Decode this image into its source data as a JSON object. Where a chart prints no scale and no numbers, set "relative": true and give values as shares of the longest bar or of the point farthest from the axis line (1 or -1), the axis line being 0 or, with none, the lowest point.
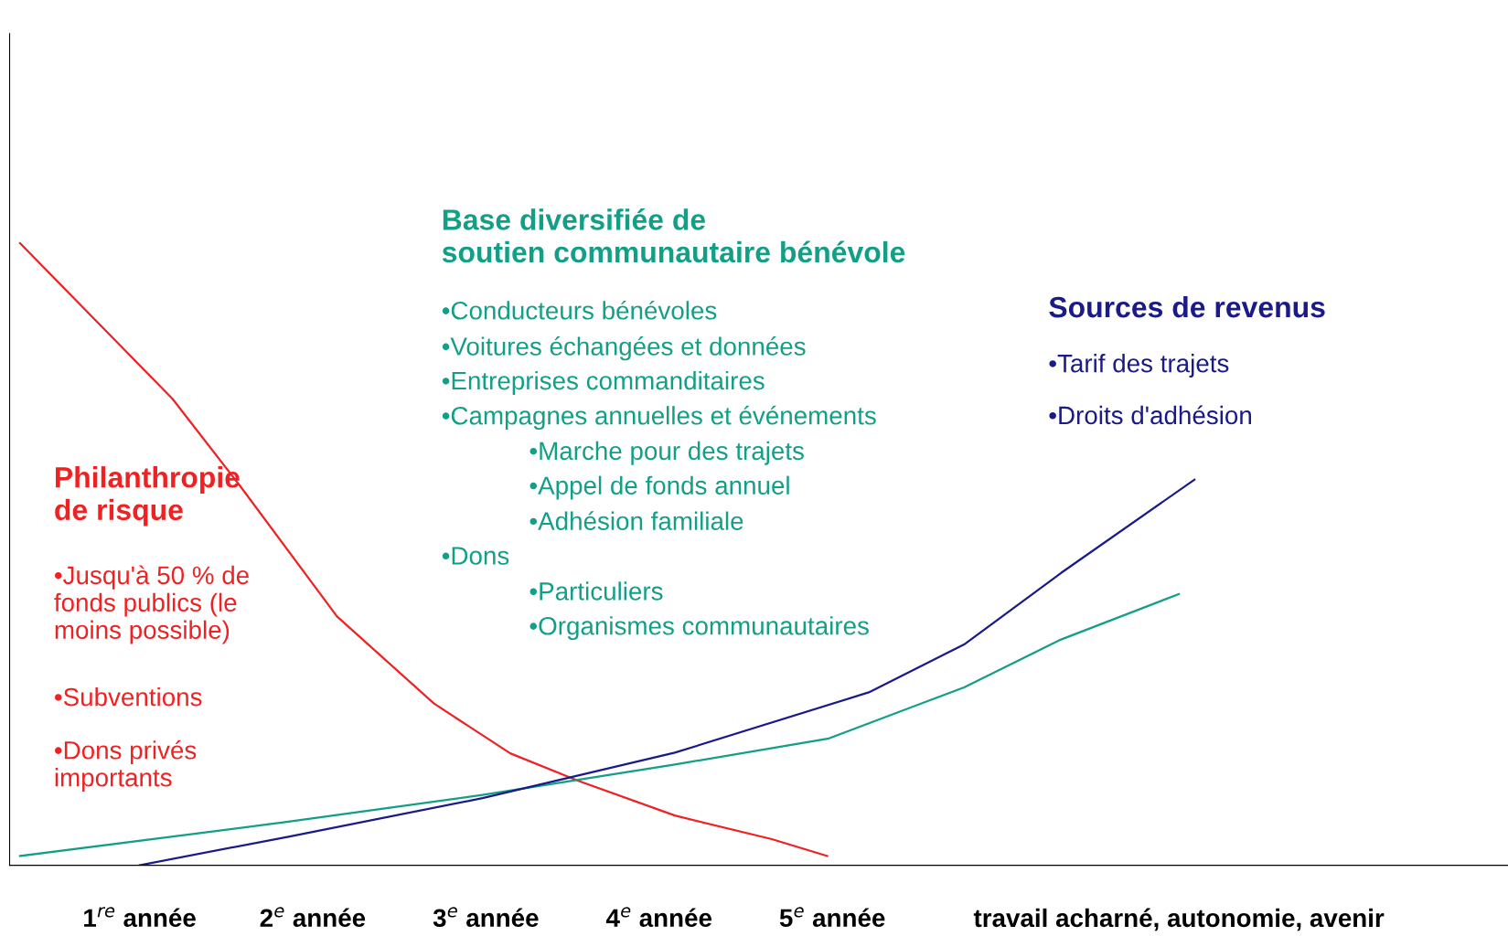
{
  "chart_data": {
    "type": "line",
    "relative": true,
    "xlim": [
      0.25,
      8.9
    ],
    "xticks": [
      {
        "value": 1,
        "label": "1$^{re}$ année"
      },
      {
        "value": 2,
        "label": "2$^{e}$ année"
      },
      {
        "value": 3,
        "label": "3$^{e}$ année"
      },
      {
        "value": 4,
        "label": "4$^{e}$ année"
      },
      {
        "value": 5,
        "label": "5$^{e}$ année"
      },
      {
        "value": 7,
        "label": "travail acharné, autonomie, avenir"
      }
    ],
    "series": [
      {
        "name": "Philanthropie\nde risque",
        "color": "#ee2222",
        "x": [
          0.31,
          1.19,
          1.58,
          2.14,
          2.7,
          3.14,
          3.53,
          4.09,
          4.65,
          4.97
        ],
        "values": [
          1.0,
          0.75,
          0.61,
          0.4,
          0.26,
          0.18,
          0.136,
          0.08,
          0.042,
          0.015
        ]
      },
      {
        "name": "Base diversifiée de\nsoutien communautaire bénévole",
        "color": "#139e86",
        "x": [
          0.31,
          1.86,
          2.98,
          4.09,
          4.98,
          5.76,
          6.32,
          7.0
        ],
        "values": [
          0.015,
          0.07,
          0.113,
          0.162,
          0.204,
          0.286,
          0.363,
          0.436
        ]
      },
      {
        "name": "Sources de revenus",
        "color": "#1a1a88",
        "x": [
          1.0,
          1.86,
          2.98,
          4.09,
          5.21,
          5.76,
          6.32,
          7.09
        ],
        "values": [
          0.0,
          0.046,
          0.108,
          0.181,
          0.278,
          0.355,
          0.47,
          0.62
        ]
      }
    ],
    "annotations": [
      "•Jusqu'à 50 % de\nfonds publics (le\nmoins possible)",
      "•Subventions",
      "•Dons privés\nimportants",
      "•Conducteurs bénévoles",
      "•Voitures échangées et données",
      "•Entreprises commanditaires",
      "•Campagnes annuelles et événements",
      "•Marche pour des trajets",
      "•Appel de fonds annuel",
      "•Adhésion familiale",
      "•Dons",
      "•Particuliers",
      "•Organismes communautaires",
      "•Tarif des trajets",
      "•Droits d'adhésion"
    ]
  }
}
